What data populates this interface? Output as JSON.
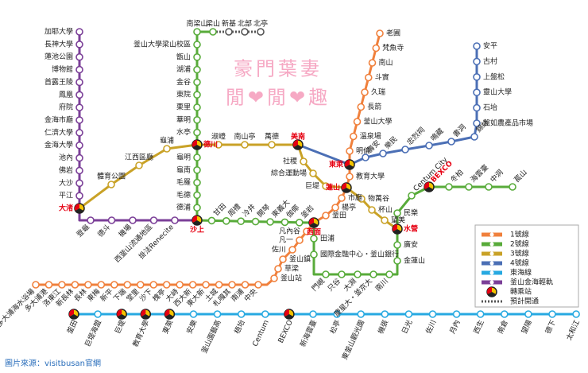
{
  "watermark": {
    "line1": "豪門葉妻",
    "line2": "閒❤閒❤趣"
  },
  "caption": "圖片來源：visitbusan官網",
  "transfer_stations": [
    "德川",
    "沙上",
    "美南",
    "東萊",
    "蓮山",
    "西面",
    "水營",
    "BEXCO",
    "大渚"
  ],
  "extension_stations": [
    "南梁山",
    "梁山",
    "新基",
    "北部",
    "北亭"
  ],
  "lines": [
    {
      "name": "1號線",
      "color": "#f0803c",
      "stations": [
        "老圃",
        "梵魚寺",
        "南山",
        "斗實",
        "久瑞",
        "長箭",
        "釜山大學",
        "溫泉場",
        "明倫",
        "教育大學",
        "市廳",
        "楊亭",
        "釜田",
        "凡內谷",
        "凡一",
        "佐川",
        "釜山鎮",
        "草梁",
        "釜山站",
        "中央",
        "南浦",
        "札嘎其",
        "土城",
        "東大新",
        "西大新",
        "大峙",
        "槐亭",
        "沙下",
        "堂里",
        "下端",
        "新平",
        "東梅",
        "長林",
        "新長林",
        "洛東江",
        "多大浦港",
        "多大浦海水浴場"
      ]
    },
    {
      "name": "2號線",
      "color": "#58ab3a",
      "stations": [
        "釜山大學梁山校區",
        "甑山",
        "湖浦",
        "金谷",
        "東院",
        "栗里",
        "華明",
        "水亭",
        "龜明",
        "龜南",
        "毛羅",
        "毛德",
        "德浦",
        "甘田",
        "周禮",
        "冷井",
        "開琴",
        "東義大",
        "伽倻",
        "釜岩",
        "田浦",
        "國際金融中心・釜山銀行",
        "門峴",
        "只谷",
        "大淵",
        "慶星大・釜京大",
        "南川",
        "金蓮山",
        "廣安",
        "民樂",
        "Centum City",
        "冬柏",
        "海雲臺",
        "中洞",
        "萇山"
      ]
    },
    {
      "name": "3號線",
      "color": "#c9a227",
      "stations": [
        "體育公園",
        "江西區廳",
        "龜浦",
        "淑嶝",
        "南山亭",
        "萬德",
        "社稷",
        "綜合運動場",
        "巨堤",
        "物萬谷",
        "杯山",
        "望美"
      ]
    },
    {
      "name": "4號線",
      "color": "#4b6fb5",
      "stations": [
        "壽安",
        "樂民",
        "忠烈祠",
        "鳴藏",
        "書洞",
        "錦絲",
        "盤如農產品市場",
        "石坮",
        "靈山大學",
        "上盤松",
        "古村",
        "安平"
      ]
    },
    {
      "name": "東海線",
      "color": "#27a9e1",
      "stations": [
        "釜田",
        "巨堤海盟",
        "巨堤",
        "教育大學",
        "東萊",
        "安樂",
        "釜山園藝高",
        "梧坮",
        "Centum",
        "BEXCO",
        "新海雲臺",
        "松亭",
        "東釜山觀光園",
        "機張",
        "日光",
        "佐川",
        "月內",
        "西生",
        "南倉",
        "望陽",
        "德下",
        "太和江"
      ]
    },
    {
      "name": "釜山金海輕軌",
      "color": "#7b3f98",
      "stations": [
        "加耶大學",
        "長神大學",
        "蓮池公園",
        "博物館",
        "首露王陵",
        "鳳凰",
        "府院",
        "金海市廳",
        "仁濟大學",
        "金海大學",
        "池內",
        "佛岩",
        "大沙",
        "平江",
        "登龜",
        "德斗",
        "機場",
        "西釜山流通地區",
        "掛法Renecite"
      ]
    }
  ],
  "legend": {
    "transfer": "轉乘站",
    "planned": "預計開通"
  }
}
